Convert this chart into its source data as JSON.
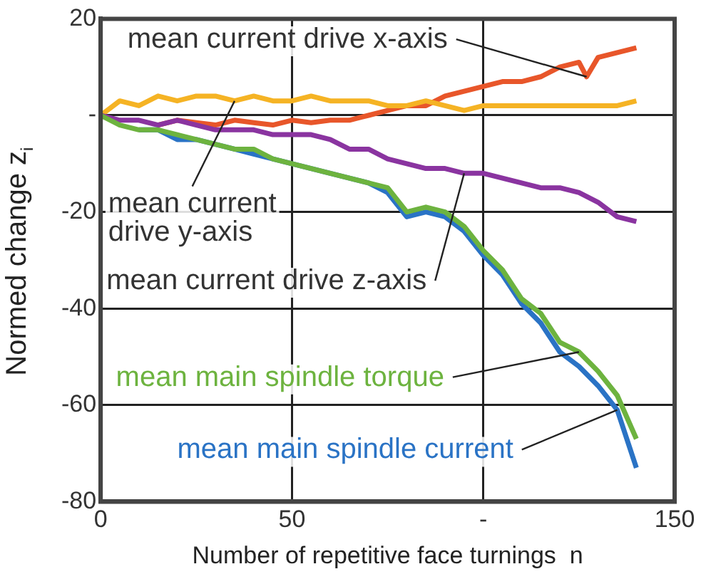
{
  "chart_data": {
    "type": "line",
    "xlabel": "Number of repetitive face turnings  n",
    "ylabel": "Normed change z$_{i}$",
    "xlim": [
      0,
      150
    ],
    "xticks": [
      0,
      50,
      {
        "value": 100,
        "label": "-"
      },
      150
    ],
    "ylim": [
      -80,
      20
    ],
    "yticks": [
      20,
      {
        "value": 0,
        "label": "-"
      },
      -20,
      -40,
      -60,
      -80
    ],
    "grid": true,
    "legend": false,
    "marker": "none",
    "line_style": "solid",
    "series": [
      {
        "name": "mean current drive x-axis",
        "color": "#e8562a",
        "x": [
          15,
          20,
          25,
          30,
          35,
          40,
          45,
          50,
          55,
          60,
          65,
          70,
          75,
          80,
          85,
          90,
          95,
          100,
          105,
          110,
          115,
          120,
          125,
          127,
          130,
          135,
          140
        ],
        "values": [
          -2,
          -1,
          -1.5,
          -2,
          -1,
          -1.5,
          -2,
          -1,
          -1.5,
          -1,
          -1,
          0,
          1,
          2,
          2,
          4,
          5,
          6,
          7,
          7,
          8,
          10,
          11,
          8,
          12,
          13,
          14
        ]
      },
      {
        "name": "mean current drive y-axis",
        "color": "#f5b324",
        "x": [
          0,
          5,
          10,
          15,
          20,
          25,
          30,
          35,
          40,
          45,
          50,
          55,
          60,
          65,
          70,
          75,
          80,
          85,
          90,
          95,
          100,
          105,
          110,
          115,
          120,
          125,
          130,
          135,
          140
        ],
        "values": [
          0,
          3,
          2,
          4,
          3,
          4,
          4,
          3,
          4,
          3,
          3,
          4,
          3,
          3,
          3,
          2,
          2,
          3,
          2,
          1,
          2,
          2,
          2,
          2,
          2,
          2,
          2,
          2,
          3
        ]
      },
      {
        "name": "mean current drive z-axis",
        "color": "#8a34a0",
        "x": [
          0,
          5,
          10,
          15,
          20,
          25,
          30,
          35,
          40,
          45,
          50,
          55,
          60,
          65,
          70,
          75,
          80,
          85,
          90,
          95,
          100,
          105,
          110,
          115,
          120,
          125,
          130,
          135,
          140
        ],
        "values": [
          0,
          -1,
          -1,
          -2,
          -1,
          -2,
          -3,
          -3,
          -3,
          -4,
          -4,
          -4,
          -5,
          -7,
          -7,
          -9,
          -10,
          -11,
          -11,
          -12,
          -12,
          -13,
          -14,
          -15,
          -15,
          -16,
          -18,
          -21,
          -22
        ]
      },
      {
        "name": "mean main spindle current",
        "color": "#2a73c5",
        "x": [
          10,
          15,
          20,
          25,
          30,
          35,
          40,
          45,
          50,
          55,
          60,
          65,
          70,
          75,
          80,
          85,
          90,
          95,
          100,
          105,
          110,
          115,
          120,
          125,
          130,
          135,
          140
        ],
        "values": [
          -3,
          -3,
          -5,
          -5,
          -6,
          -7,
          -8,
          -9,
          -10,
          -11,
          -12,
          -13,
          -14,
          -16,
          -21,
          -20,
          -21,
          -24,
          -29,
          -33,
          -39,
          -43,
          -49,
          -52,
          -56,
          -61,
          -73
        ]
      },
      {
        "name": "mean main spindle torque",
        "color": "#6db33f",
        "x": [
          0,
          5,
          10,
          15,
          20,
          25,
          30,
          35,
          40,
          45,
          50,
          55,
          60,
          65,
          70,
          75,
          80,
          85,
          90,
          95,
          100,
          105,
          110,
          115,
          120,
          125,
          130,
          135,
          140
        ],
        "values": [
          0,
          -2,
          -3,
          -3,
          -4,
          -5,
          -6,
          -7,
          -7,
          -9,
          -10,
          -11,
          -12,
          -13,
          -14,
          -15,
          -20,
          -19,
          -20,
          -23,
          -28,
          -32,
          -38,
          -41,
          -47,
          -49,
          -53,
          -58,
          -67
        ]
      }
    ]
  }
}
